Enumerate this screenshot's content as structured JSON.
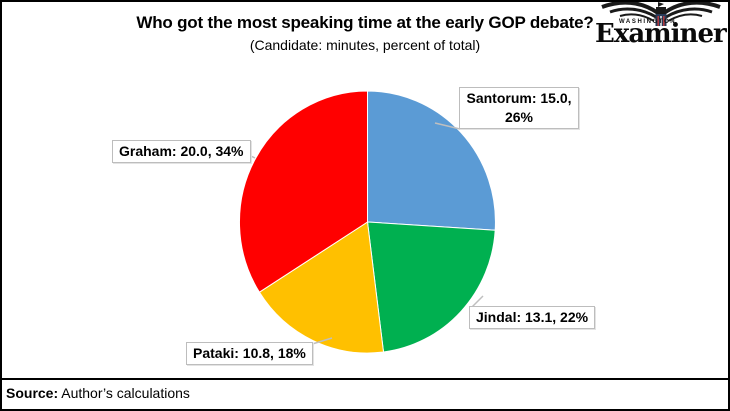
{
  "header": {
    "title": "Who got the most speaking time at the early GOP debate?",
    "subtitle": "(Candidate: minutes, percent of total)"
  },
  "logo": {
    "top_word": "WASHINGTON",
    "name": "Examiner"
  },
  "chart_data": {
    "type": "pie",
    "title": "Who got the most speaking time at the early GOP debate?",
    "subtitle": "(Candidate: minutes, percent of total)",
    "start_angle_deg": 0,
    "direction": "clockwise",
    "legend": "none",
    "slices": [
      {
        "label": "Santorum",
        "minutes": 15.0,
        "percent": 26,
        "color": "#5B9BD5"
      },
      {
        "label": "Jindal",
        "minutes": 13.1,
        "percent": 22,
        "color": "#00B050"
      },
      {
        "label": "Pataki",
        "minutes": 10.8,
        "percent": 18,
        "color": "#FFC000"
      },
      {
        "label": "Graham",
        "minutes": 20.0,
        "percent": 34,
        "color": "#FF0000"
      }
    ],
    "source": "Source: Author’s calculations"
  },
  "callouts": {
    "santorum": {
      "line1": "Santorum: 15.0,",
      "line2": "26%"
    },
    "graham": {
      "text": "Graham: 20.0, 34%"
    },
    "jindal": {
      "text": "Jindal: 13.1, 22%"
    },
    "pataki": {
      "text": "Pataki: 10.8, 18%"
    }
  },
  "footer": {
    "source_label": "Source:",
    "source_text": " Author’s calculations"
  }
}
